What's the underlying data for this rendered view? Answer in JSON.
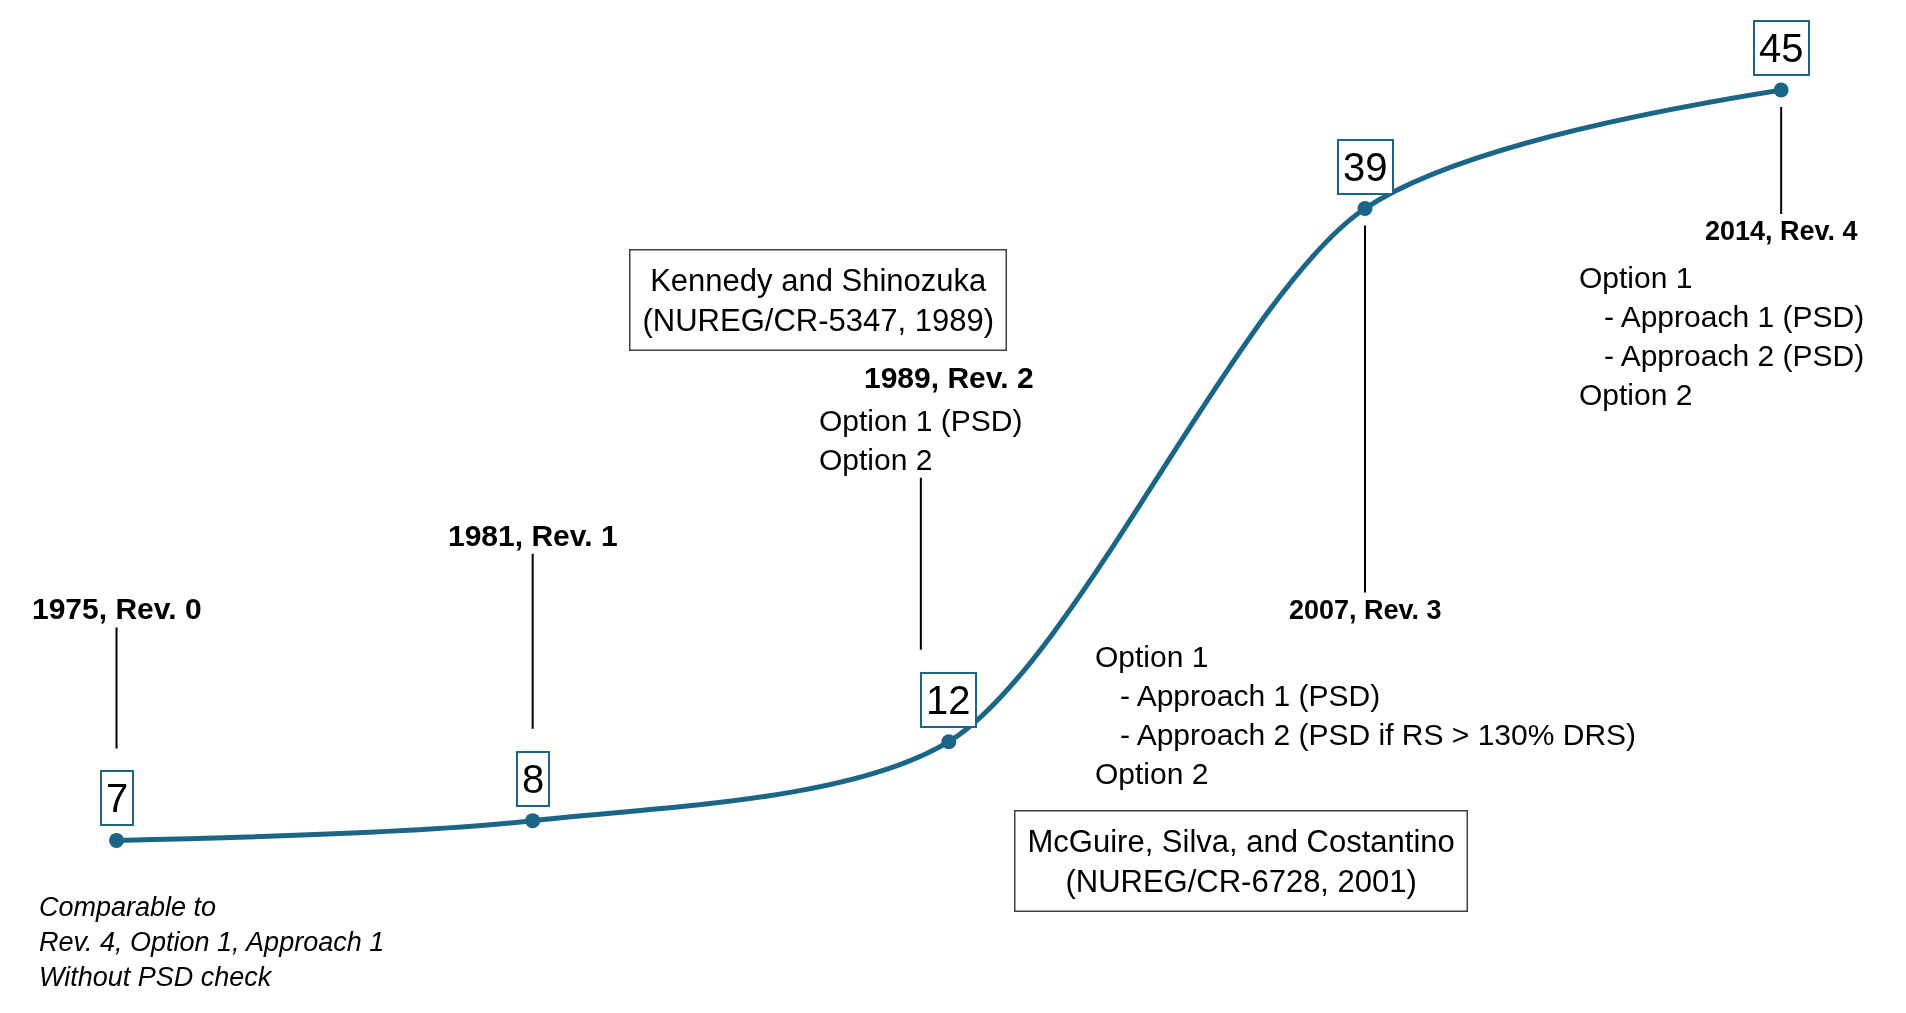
{
  "chart_data": {
    "type": "line",
    "categories": [
      null,
      null,
      null,
      null,
      null
    ],
    "series": [
      {
        "color": "#1b6587",
        "values": [
          7,
          8,
          12,
          39,
          45
        ]
      }
    ],
    "marker": "circle",
    "line_style": "solid",
    "data_labels": true,
    "tick_labels": false,
    "annotations": [
      "1975, Rev. 0",
      "Comparable to\nRev. 4, Option 1, Approach 1\nWithout PSD check",
      "1981, Rev. 1",
      "1989, Rev. 2\nOption 1 (PSD)\nOption 2",
      "2007, Rev. 3\nOption 1\n   - Approach 1 (PSD)\n   - Approach 2 (PSD if RS > 130% DRS)\nOption 2",
      "2014, Rev. 4\nOption 1\n   - Approach 1 (PSD)\n   - Approach 2 (PSD)\nOption 2",
      "Kennedy and Shinozuka\n(NUREG/CR-5347, 1989)",
      "McGuire, Silva, and Costantino\n(NUREG/CR-6728, 2001)"
    ]
  }
}
